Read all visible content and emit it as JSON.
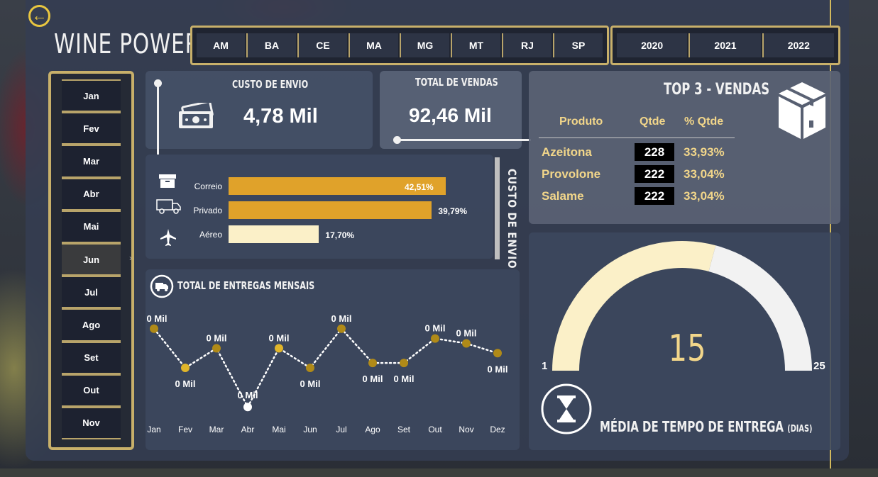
{
  "app": {
    "title": "WINE POWER"
  },
  "filters": {
    "states": [
      "AM",
      "BA",
      "CE",
      "MA",
      "MG",
      "MT",
      "RJ",
      "SP"
    ],
    "years": [
      "2020",
      "2021",
      "2022"
    ],
    "months": [
      "Jan",
      "Fev",
      "Mar",
      "Abr",
      "Mai",
      "Jun",
      "Jul",
      "Ago",
      "Set",
      "Out",
      "Nov"
    ],
    "selected_month": "Jun"
  },
  "kpis": {
    "custo_envio": {
      "title": "CUSTO DE ENVIO",
      "value": "4,78 Mil"
    },
    "total_vendas": {
      "title": "TOTAL DE VENDAS",
      "value": "92,46 Mil"
    }
  },
  "top3": {
    "title": "TOP 3 - VENDAS",
    "headers": {
      "produto": "Produto",
      "qtde": "Qtde",
      "pct": "% Qtde"
    },
    "rows": [
      {
        "produto": "Azeitona",
        "qtde": "228",
        "pct": "33,93%"
      },
      {
        "produto": "Provolone",
        "qtde": "222",
        "pct": "33,04%"
      },
      {
        "produto": "Salame",
        "qtde": "222",
        "pct": "33,04%"
      }
    ]
  },
  "shipping": {
    "side_title": "CUSTO DE ENVIO",
    "rows": [
      {
        "label": "Correio",
        "value_text": "42,51%",
        "value": 42.51,
        "color": "#e0a22a",
        "icon": "box-icon"
      },
      {
        "label": "Privado",
        "value_text": "39,79%",
        "value": 39.79,
        "color": "#e0a22a",
        "icon": "truck-icon"
      },
      {
        "label": "Aéreo",
        "value_text": "17,70%",
        "value": 17.7,
        "color": "#fbf0c8",
        "icon": "airplane-icon"
      }
    ]
  },
  "chart_data": {
    "type": "line",
    "title": "TOTAL DE ENTREGAS MENSAIS",
    "categories": [
      "Jan",
      "Fev",
      "Mar",
      "Abr",
      "Mai",
      "Jun",
      "Jul",
      "Ago",
      "Set",
      "Out",
      "Nov",
      "Dez"
    ],
    "values": [
      0.38,
      0.3,
      0.34,
      0.22,
      0.34,
      0.3,
      0.38,
      0.31,
      0.31,
      0.36,
      0.35,
      0.33
    ],
    "data_labels": [
      "0 Mil",
      "0 Mil",
      "0 Mil",
      "0 Mil",
      "0 Mil",
      "0 Mil",
      "0 Mil",
      "0 Mil",
      "0 Mil",
      "0 Mil",
      "0 Mil",
      "0 Mil"
    ],
    "highlight_index": 3,
    "colors": {
      "point": "#b08a18",
      "highlight": "#f1d76a",
      "line": "#ffffff"
    }
  },
  "gauge": {
    "title": "MÉDIA DE TEMPO DE ENTREGA",
    "unit": "(DIAS)",
    "value": 15,
    "value_text": "15",
    "min": 1,
    "max": 25,
    "min_text": "1",
    "max_text": "25",
    "fill_color": "#fbf0c8",
    "track_color": "#f2f2f2"
  }
}
